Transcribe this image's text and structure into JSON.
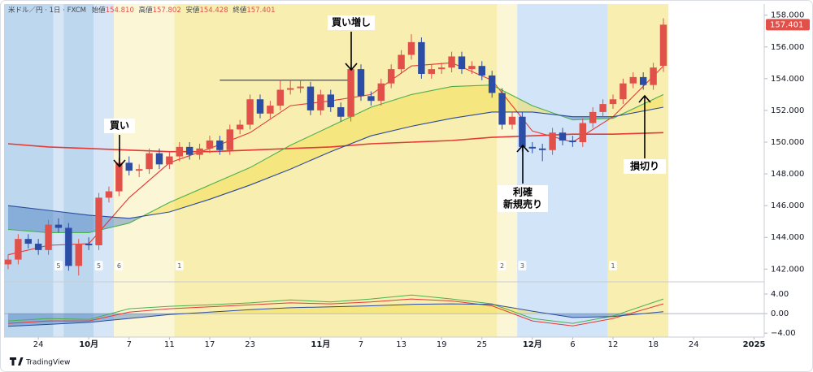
{
  "chart_data": {
    "type": "candlestick",
    "header": {
      "title": "米ドル／円 · 1日 · FXCM",
      "fields": [
        "始値",
        "高値",
        "安値",
        "終値"
      ],
      "field_labels": [
        "154.810",
        "157.802",
        "154.428",
        "157.401"
      ]
    },
    "open": [
      142.3,
      142.6,
      143.9,
      143.6,
      143.2,
      144.8,
      144.6,
      142.2,
      143.6,
      143.5,
      146.5,
      146.9,
      148.7,
      148.2,
      148.3,
      149.3,
      148.6,
      149.1,
      149.7,
      149.2,
      149.6,
      150.1,
      149.5,
      150.8,
      151.1,
      152.7,
      151.8,
      152.3,
      153.3,
      153.4,
      153.5,
      152.0,
      153.0,
      152.2,
      151.6,
      154.6,
      152.9,
      152.6,
      153.7,
      154.6,
      155.5,
      156.3,
      154.3,
      154.6,
      154.7,
      155.4,
      154.6,
      154.8,
      154.2,
      153.1,
      151.1,
      151.6,
      149.7,
      149.6,
      149.5,
      150.6,
      150.1,
      150.0,
      151.2,
      151.9,
      152.4,
      152.7,
      153.7,
      154.1,
      153.6,
      154.81
    ],
    "high": [
      142.9,
      144.2,
      144.2,
      143.9,
      145.1,
      145.2,
      144.9,
      143.9,
      144.0,
      146.8,
      147.2,
      149.0,
      149.1,
      148.6,
      149.6,
      149.6,
      149.4,
      150.0,
      150.0,
      149.9,
      150.4,
      150.4,
      151.1,
      151.4,
      153.0,
      153.0,
      152.6,
      153.9,
      153.9,
      153.9,
      153.8,
      153.3,
      153.3,
      152.5,
      154.9,
      154.9,
      153.2,
      154.0,
      154.9,
      155.8,
      156.8,
      156.6,
      154.9,
      155.0,
      155.7,
      155.7,
      155.1,
      155.1,
      154.5,
      153.4,
      151.9,
      151.9,
      150.0,
      149.9,
      150.9,
      150.9,
      150.4,
      151.5,
      152.2,
      152.7,
      153.0,
      154.0,
      154.4,
      154.4,
      155.0,
      157.802
    ],
    "low": [
      142.0,
      142.3,
      143.3,
      142.9,
      142.9,
      144.3,
      141.9,
      141.6,
      143.2,
      143.2,
      146.2,
      146.6,
      147.9,
      147.8,
      148.0,
      148.3,
      148.3,
      148.8,
      148.9,
      148.9,
      149.3,
      149.2,
      149.2,
      150.5,
      150.8,
      151.5,
      151.5,
      152.0,
      153.0,
      153.1,
      151.7,
      151.7,
      151.9,
      151.3,
      151.3,
      152.6,
      152.3,
      152.3,
      153.4,
      154.3,
      155.2,
      154.0,
      154.0,
      154.3,
      154.4,
      154.3,
      154.3,
      153.9,
      152.8,
      150.8,
      150.8,
      149.4,
      149.3,
      148.8,
      149.2,
      149.8,
      149.7,
      149.7,
      150.9,
      151.6,
      152.1,
      152.4,
      153.4,
      153.3,
      153.3,
      154.428
    ],
    "close": [
      142.6,
      143.9,
      143.6,
      143.2,
      144.8,
      144.6,
      142.2,
      143.6,
      143.5,
      146.5,
      146.9,
      148.7,
      148.2,
      148.3,
      149.3,
      148.6,
      149.1,
      149.7,
      149.2,
      149.6,
      150.1,
      149.5,
      150.8,
      151.1,
      152.7,
      151.8,
      152.3,
      153.3,
      153.4,
      153.5,
      152.0,
      153.0,
      152.2,
      151.6,
      154.6,
      152.9,
      152.6,
      153.7,
      154.6,
      155.5,
      156.3,
      154.3,
      154.6,
      154.7,
      155.4,
      154.6,
      154.8,
      154.2,
      153.1,
      151.1,
      151.6,
      149.7,
      149.6,
      149.5,
      150.6,
      150.1,
      150.0,
      151.2,
      151.9,
      152.4,
      152.7,
      153.7,
      154.1,
      153.6,
      154.7,
      157.401
    ],
    "up_color": "#e2504a",
    "down_color": "#2c4da6",
    "xlim": [
      -0.4,
      75
    ],
    "xticks": [
      {
        "value": 3,
        "label": "24"
      },
      {
        "value": 8,
        "label": "10月"
      },
      {
        "value": 12,
        "label": "7"
      },
      {
        "value": 16,
        "label": "11"
      },
      {
        "value": 20,
        "label": "17"
      },
      {
        "value": 24,
        "label": "23"
      },
      {
        "value": 31,
        "label": "11月"
      },
      {
        "value": 35,
        "label": "7"
      },
      {
        "value": 39,
        "label": "13"
      },
      {
        "value": 43,
        "label": "19"
      },
      {
        "value": 47,
        "label": "25"
      },
      {
        "value": 52,
        "label": "12月"
      },
      {
        "value": 56,
        "label": "6"
      },
      {
        "value": 60,
        "label": "12"
      },
      {
        "value": 64,
        "label": "18"
      },
      {
        "value": 68,
        "label": "24"
      },
      {
        "value": 74,
        "label": "2025"
      }
    ],
    "ylim": [
      141.3,
      158.7
    ],
    "yticks": [
      {
        "value": 142,
        "label": "142.000"
      },
      {
        "value": 144,
        "label": "144.000"
      },
      {
        "value": 146,
        "label": "146.000"
      },
      {
        "value": 148,
        "label": "148.000"
      },
      {
        "value": 150,
        "label": "150.000"
      },
      {
        "value": 152,
        "label": "152.000"
      },
      {
        "value": 154,
        "label": "154.000"
      },
      {
        "value": 156,
        "label": "156.000"
      },
      {
        "value": 158,
        "label": "158.000"
      }
    ],
    "ma_x": [
      0,
      4,
      8,
      12,
      16,
      20,
      24,
      28,
      32,
      36,
      40,
      44,
      48,
      52,
      56,
      60,
      65
    ],
    "lines": [
      {
        "color": "#e53935",
        "values": [
          149.9,
          149.7,
          149.6,
          149.5,
          149.4,
          149.4,
          149.5,
          149.6,
          149.7,
          149.9,
          150.0,
          150.1,
          150.3,
          150.4,
          150.5,
          150.5,
          150.6
        ]
      },
      {
        "color": "#e53935",
        "values": [
          142.9,
          143.5,
          143.6,
          146.5,
          148.7,
          149.6,
          150.6,
          152.3,
          152.6,
          153.0,
          154.8,
          155.0,
          153.9,
          150.7,
          150.0,
          151.6,
          154.8
        ]
      },
      {
        "color": "#4caf50",
        "values": [
          144.5,
          144.3,
          144.3,
          144.9,
          146.2,
          147.3,
          148.4,
          149.8,
          151.0,
          152.2,
          153.0,
          153.5,
          153.6,
          152.3,
          151.4,
          151.5,
          153.0
        ]
      },
      {
        "color": "#2b4a9b",
        "values": [
          146.0,
          145.7,
          145.4,
          145.2,
          145.6,
          146.4,
          147.3,
          148.3,
          149.4,
          150.4,
          151.0,
          151.5,
          151.9,
          151.9,
          151.6,
          151.6,
          152.2
        ]
      }
    ],
    "cloud_colors": [
      "rgba(244,222,80,0.5)",
      "rgba(55,110,185,0.4)"
    ],
    "hline": {
      "value": 153.9,
      "from": 21,
      "to": 34
    },
    "regions": [
      {
        "from": -0.4,
        "to": 4.5,
        "color": "#bdd7ef"
      },
      {
        "from": 4.5,
        "to": 5.5,
        "color": "#d6e6f6"
      },
      {
        "from": 5.5,
        "to": 8.5,
        "color": "#bdd7ef"
      },
      {
        "from": 8.5,
        "to": 10.5,
        "color": "#d6e6f6"
      },
      {
        "from": 10.5,
        "to": 16.5,
        "color": "#fbf6d6"
      },
      {
        "from": 16.5,
        "to": 48.5,
        "color": "#f7eeb0"
      },
      {
        "from": 48.5,
        "to": 50.5,
        "color": "#fbf6d6"
      },
      {
        "from": 50.5,
        "to": 59.5,
        "color": "#d2e4f7"
      },
      {
        "from": 59.5,
        "to": 65.5,
        "color": "#f7eeb0"
      }
    ],
    "count_labels": {
      "x": [
        5,
        9,
        11,
        17,
        49,
        51,
        60
      ],
      "labels": [
        "5",
        "5",
        "6",
        "1",
        "2",
        "3",
        "1"
      ]
    },
    "annotations": [
      "買い",
      "買い増し",
      "利確",
      "新規売り",
      "損切り"
    ],
    "sub": {
      "ylim": [
        -4.8,
        6
      ],
      "yticks": [
        {
          "value": 4,
          "label": "4.00"
        },
        {
          "value": 0,
          "label": "0.00"
        },
        {
          "value": -4,
          "label": "−4.00"
        }
      ],
      "lines": [
        {
          "color": "#4caf50",
          "values": [
            -1.5,
            -1.0,
            -1.2,
            1.0,
            1.5,
            1.8,
            2.2,
            2.8,
            2.4,
            3.0,
            3.8,
            3.0,
            2.0,
            -1.0,
            -2.0,
            -0.5,
            3.0
          ]
        },
        {
          "color": "#e53935",
          "values": [
            -2.0,
            -1.5,
            -1.5,
            0.3,
            1.0,
            1.4,
            1.8,
            2.2,
            2.0,
            2.4,
            3.0,
            2.6,
            1.6,
            -1.5,
            -2.5,
            -1.0,
            2.0
          ]
        },
        {
          "color": "#2b4a9b",
          "values": [
            -2.6,
            -2.2,
            -1.8,
            -1.0,
            -0.2,
            0.3,
            0.8,
            1.2,
            1.4,
            1.6,
            1.9,
            2.0,
            1.9,
            0.5,
            -0.8,
            -0.6,
            0.4
          ]
        }
      ]
    },
    "brand": "TradingView"
  }
}
